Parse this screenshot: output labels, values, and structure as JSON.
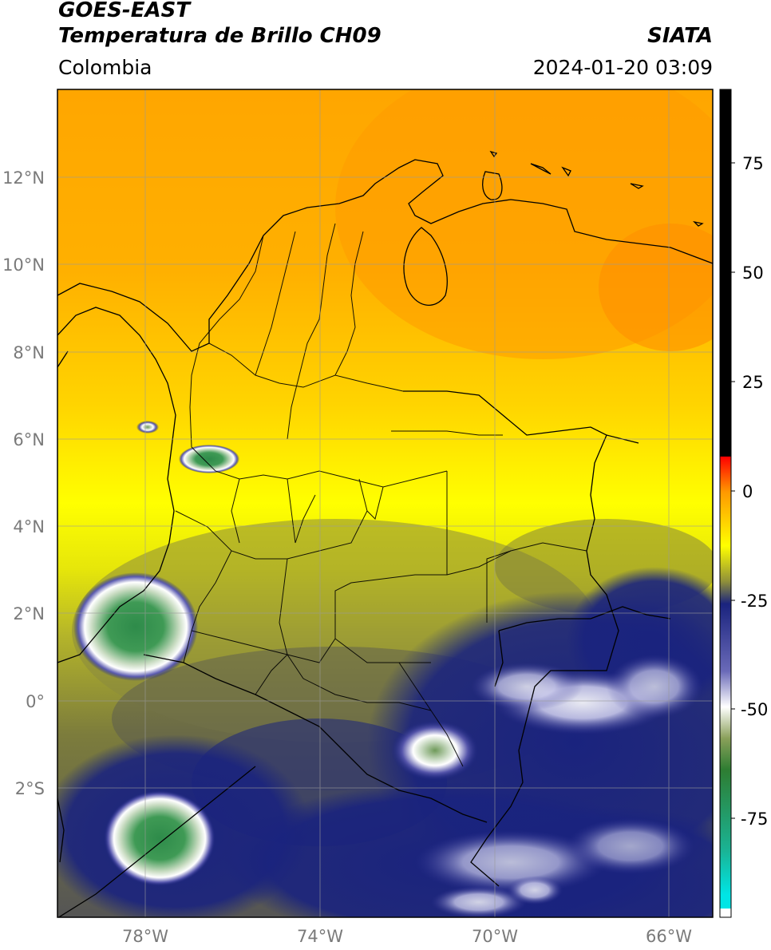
{
  "header": {
    "line1": "GOES-EAST",
    "line2": "Temperatura de Brillo CH09",
    "region": "Colombia",
    "agency": "SIATA",
    "datetime": "2024-01-20 03:09"
  },
  "map": {
    "lon_range": [
      -80,
      -65
    ],
    "lat_range": [
      -5,
      14
    ],
    "lat_ticks": [
      "12°N",
      "10°N",
      "8°N",
      "6°N",
      "4°N",
      "2°N",
      "0°",
      "2°S"
    ],
    "lon_ticks": [
      "78°W",
      "74°W",
      "70°W",
      "66°W"
    ]
  },
  "colorbar": {
    "ticks": [
      "75",
      "50",
      "25",
      "0",
      "-25",
      "-50",
      "-75"
    ],
    "stops": [
      {
        "v": 90,
        "color": "#000000"
      },
      {
        "v": 8,
        "color": "#000000"
      },
      {
        "v": 7.9,
        "color": "#ff0000"
      },
      {
        "v": 0,
        "color": "#ff9900"
      },
      {
        "v": -12,
        "color": "#ffff00"
      },
      {
        "v": -20,
        "color": "#8f8f3a"
      },
      {
        "v": -25,
        "color": "#1a237e"
      },
      {
        "v": -40,
        "color": "#6a6ab8"
      },
      {
        "v": -48,
        "color": "#ffffff"
      },
      {
        "v": -55,
        "color": "#8aa05a"
      },
      {
        "v": -62,
        "color": "#2e7d32"
      },
      {
        "v": -80,
        "color": "#1ab394"
      },
      {
        "v": -90,
        "color": "#00e5e5"
      },
      {
        "v": -93,
        "color": "#00e5e5"
      },
      {
        "v": -93.1,
        "color": "#ffffff"
      },
      {
        "v": -95,
        "color": "#ffffff"
      }
    ]
  }
}
